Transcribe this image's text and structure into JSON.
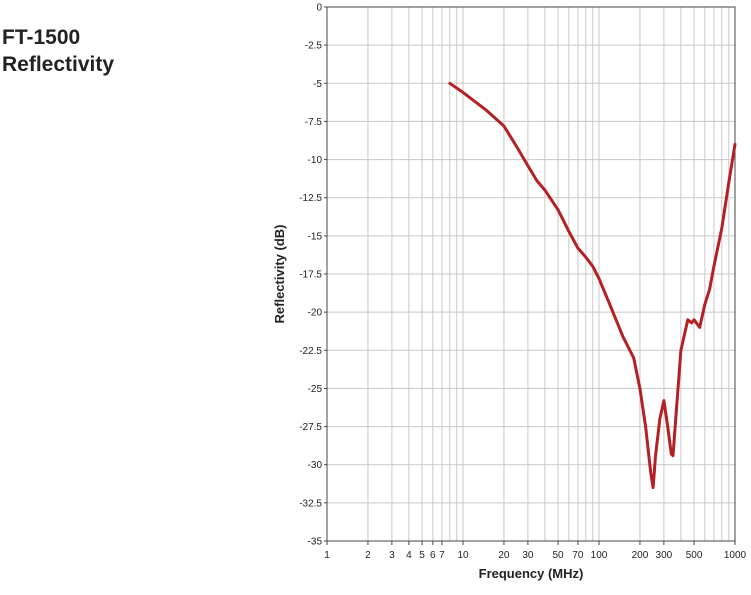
{
  "chart_data": {
    "type": "line",
    "title_line1": "FT-1500",
    "title_line2": "Reflectivity",
    "xlabel": "Frequency (MHz)",
    "ylabel": "Reflectivity (dB)",
    "x_scale": "log",
    "xlim": [
      1,
      1000
    ],
    "ylim": [
      -35,
      0
    ],
    "grid": true,
    "x_ticks": [
      1,
      2,
      3,
      4,
      5,
      6,
      7,
      10,
      20,
      30,
      50,
      70,
      100,
      200,
      300,
      500,
      1000
    ],
    "x_tick_labels": [
      "1",
      "2",
      "3",
      "4",
      "5",
      "6",
      "7",
      "10",
      "20",
      "30",
      "50",
      "70",
      "100",
      "200",
      "300",
      "500",
      "1000"
    ],
    "y_ticks": [
      0,
      -2.5,
      -5,
      -7.5,
      -10,
      -12.5,
      -15,
      -17.5,
      -20,
      -22.5,
      -25,
      -27.5,
      -30,
      -32.5,
      -35
    ],
    "y_tick_labels": [
      "0",
      "-2.5",
      "-5",
      "-7.5",
      "-10",
      "-12.5",
      "-15",
      "-17.5",
      "-20",
      "-22.5",
      "-25",
      "-27.5",
      "-30",
      "-32.5",
      "-35"
    ],
    "series": [
      {
        "color": "#b52025",
        "x": [
          8,
          10,
          15,
          20,
          25,
          30,
          35,
          40,
          50,
          60,
          70,
          80,
          90,
          100,
          120,
          150,
          180,
          200,
          220,
          240,
          250,
          260,
          280,
          300,
          320,
          340,
          350,
          370,
          400,
          450,
          480,
          500,
          550,
          600,
          650,
          700,
          800,
          900,
          1000
        ],
        "y": [
          -5,
          -5.6,
          -6.8,
          -7.8,
          -9.2,
          -10.4,
          -11.4,
          -12.0,
          -13.3,
          -14.7,
          -15.8,
          -16.4,
          -17.0,
          -17.8,
          -19.5,
          -21.6,
          -23.0,
          -25.0,
          -27.5,
          -30.5,
          -31.5,
          -29.5,
          -27.0,
          -25.8,
          -27.5,
          -29.3,
          -29.4,
          -26.5,
          -22.5,
          -20.5,
          -20.7,
          -20.5,
          -21.0,
          -19.5,
          -18.5,
          -17.0,
          -14.5,
          -11.5,
          -9.0
        ]
      }
    ]
  }
}
